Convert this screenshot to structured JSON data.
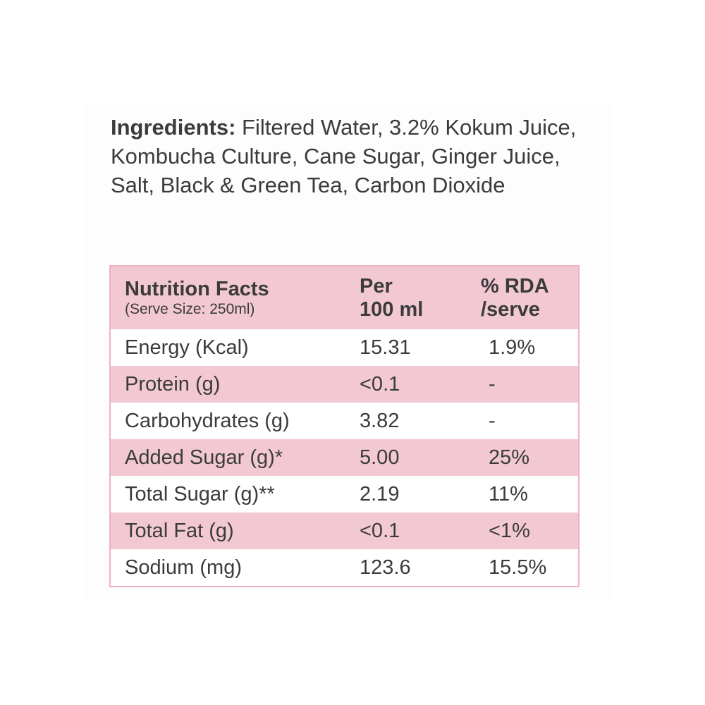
{
  "ingredients": {
    "label": "Ingredients:",
    "text": "Filtered Water, 3.2% Kokum Juice, Kombucha Culture, Cane Sugar, Ginger Juice, Salt, Black & Green Tea, Carbon Dioxide"
  },
  "nutrition": {
    "header": {
      "title": "Nutrition Facts",
      "serve_size": "(Serve Size: 250ml)",
      "per_line1": "Per",
      "per_line2": "100 ml",
      "rda_line1": "% RDA",
      "rda_line2": "/serve"
    },
    "rows": [
      {
        "nutrient": "Energy (Kcal)",
        "per100": "15.31",
        "rda": "1.9%"
      },
      {
        "nutrient": "Protein (g)",
        "per100": "<0.1",
        "rda": "-"
      },
      {
        "nutrient": "Carbohydrates (g)",
        "per100": "3.82",
        "rda": "-"
      },
      {
        "nutrient": "Added Sugar (g)*",
        "per100": "5.00",
        "rda": "25%"
      },
      {
        "nutrient": "Total Sugar (g)**",
        "per100": "2.19",
        "rda": "11%"
      },
      {
        "nutrient": "Total Fat (g)",
        "per100": "<0.1",
        "rda": "<1%"
      },
      {
        "nutrient": "Sodium (mg)",
        "per100": "123.6",
        "rda": "15.5%"
      }
    ]
  },
  "colors": {
    "pink_row": "#f2c8d3",
    "border": "#efb1c1",
    "text": "#3b3b3b"
  }
}
